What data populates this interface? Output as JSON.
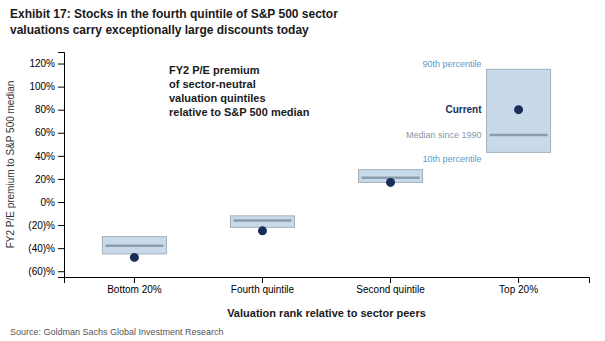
{
  "chart_data": {
    "type": "box",
    "title": "Exhibit 17: Stocks in the fourth quintile of S&P 500 sector",
    "subtitle": "valuations carry exceptionally large discounts today",
    "categories": [
      "Bottom 20%",
      "Fourth quintile",
      "Second quintile",
      "Top 20%"
    ],
    "series": [
      {
        "name": "10th percentile",
        "values": [
          -45,
          -22,
          17,
          43
        ],
        "color": "#c8daea"
      },
      {
        "name": "90th percentile",
        "values": [
          -30,
          -12,
          28,
          115
        ],
        "color": "#c8daea"
      },
      {
        "name": "Median since 1990",
        "values": [
          -38,
          -16,
          21,
          58
        ],
        "color": "#9baec0"
      },
      {
        "name": "Current",
        "values": [
          -48,
          -25,
          17,
          80
        ],
        "color": "#1a2e5a"
      }
    ],
    "ylabel": "FY2 P/E premium to S&P 500 median",
    "xlabel": "Valuation rank relative to sector peers",
    "ylim": [
      -65,
      130
    ],
    "yticks": [
      {
        "value": -60,
        "label": "(60)%"
      },
      {
        "value": -40,
        "label": "(40)%"
      },
      {
        "value": -20,
        "label": "(20)%"
      },
      {
        "value": 0,
        "label": "0%"
      },
      {
        "value": 20,
        "label": "20%"
      },
      {
        "value": 40,
        "label": "40%"
      },
      {
        "value": 60,
        "label": "60%"
      },
      {
        "value": 80,
        "label": "80%"
      },
      {
        "value": 100,
        "label": "100%"
      },
      {
        "value": 120,
        "label": "120%"
      }
    ],
    "annotations": [
      "FY2 P/E premium",
      "of sector-neutral",
      "valuation quintiles",
      "relative to S&P 500 median"
    ],
    "source": "Source: Goldman Sachs Global Investment Research",
    "grid": false
  }
}
